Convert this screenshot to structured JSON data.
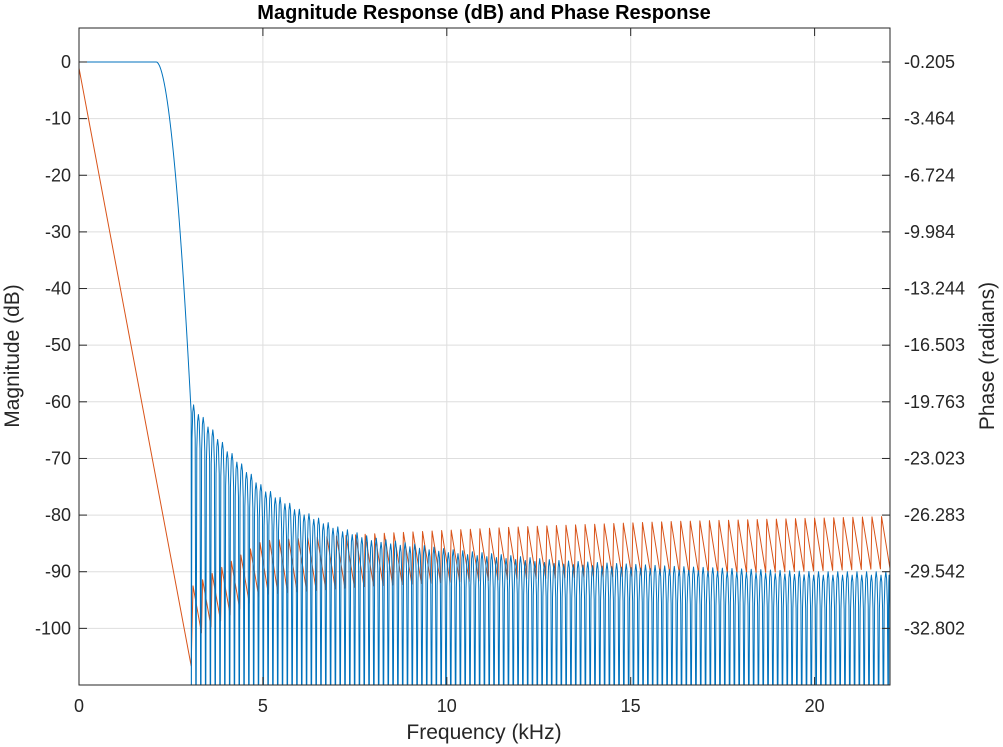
{
  "chart_data": {
    "type": "line",
    "title": "Magnitude Response (dB) and Phase Response",
    "xlabel": "Frequency (kHz)",
    "ylabel_left": "Magnitude (dB)",
    "ylabel_right": "Phase (radians)",
    "xlim": [
      0,
      22.05
    ],
    "ylim_left": [
      -110,
      6
    ],
    "ylim_right": [
      -35.7,
      2.1
    ],
    "x_ticks": [
      "0",
      "5",
      "10",
      "15",
      "20"
    ],
    "x_tick_values": [
      0,
      5,
      10,
      15,
      20
    ],
    "y_ticks_left": [
      "0",
      "-10",
      "-20",
      "-30",
      "-40",
      "-50",
      "-60",
      "-70",
      "-80",
      "-90",
      "-100"
    ],
    "y_tick_values_left": [
      0,
      -10,
      -20,
      -30,
      -40,
      -50,
      -60,
      -70,
      -80,
      -90,
      -100
    ],
    "y_ticks_right": [
      "-0.205",
      "-3.464",
      "-6.724",
      "-9.984",
      "-13.244",
      "-16.503",
      "-19.763",
      "-23.023",
      "-26.283",
      "-29.542",
      "-32.802"
    ],
    "grid": true,
    "colors": {
      "magnitude": "#0072BD",
      "phase": "#D95319",
      "grid": "#dedede",
      "axis": "#262626"
    },
    "series": [
      {
        "name": "Magnitude",
        "axis": "left",
        "passband_edge_khz": 2.1,
        "stopband_edge_khz": 3.0,
        "stopband_lobe_peaks_db": {
          "x": [
            3.05,
            4,
            5,
            6,
            7,
            8,
            10,
            13,
            16,
            20,
            22.05
          ],
          "y": [
            -60,
            -68,
            -75,
            -79,
            -82,
            -84,
            -86,
            -88,
            -89,
            -90,
            -90
          ]
        }
      },
      {
        "name": "Phase",
        "axis": "right",
        "linear_from": {
          "x": [
            0,
            3.05
          ],
          "y": [
            -0.205,
            -34.6
          ]
        },
        "wrapped_band_low": {
          "x": [
            3.1,
            5,
            8,
            12,
            16,
            22.05
          ],
          "y": [
            -33.0,
            -30.5,
            -30.0,
            -29.6,
            -29.4,
            -29.0
          ]
        },
        "wrapped_band_high": {
          "x": [
            3.1,
            5,
            8,
            12,
            16,
            22.05
          ],
          "y": [
            -30.0,
            -27.4,
            -27.0,
            -26.6,
            -26.3,
            -26.0
          ]
        }
      }
    ]
  }
}
